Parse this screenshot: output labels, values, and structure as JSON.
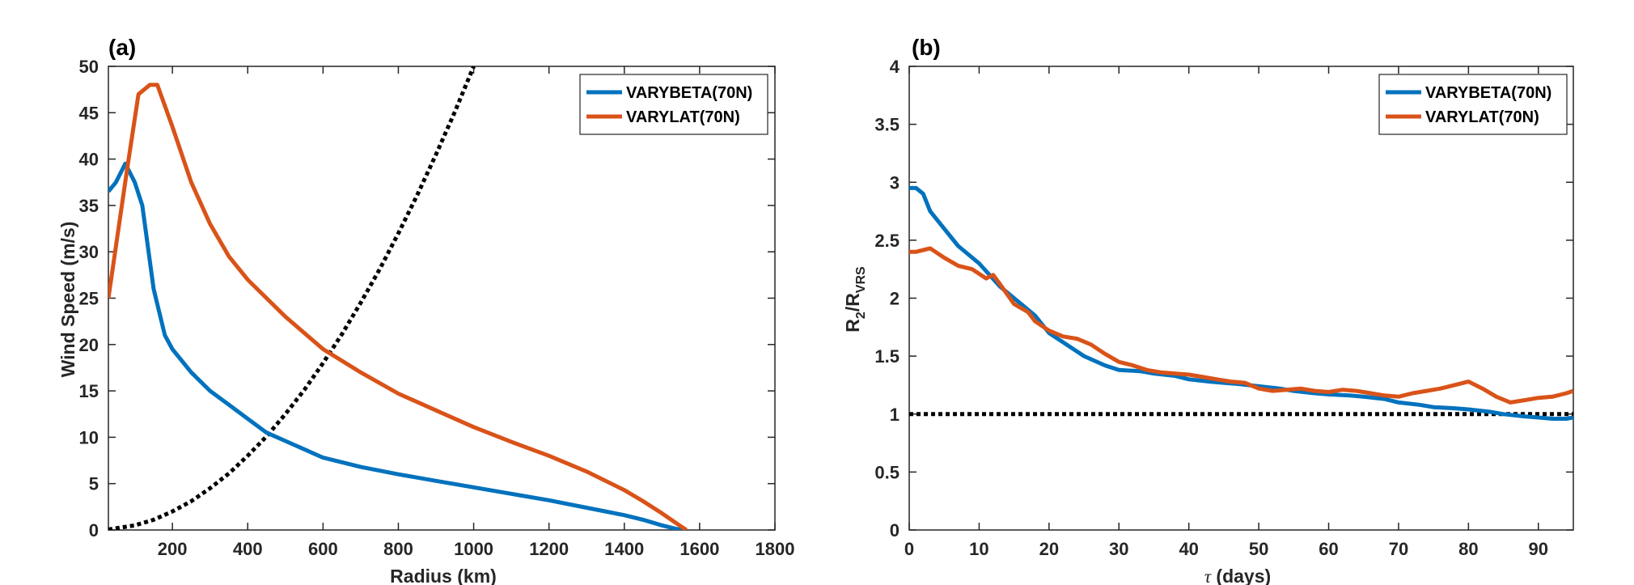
{
  "chart_data": [
    {
      "panel": "(a)",
      "type": "line",
      "xlabel": "Radius (km)",
      "ylabel": "Wind Speed (m/s)",
      "xlim": [
        30,
        1800
      ],
      "ylim": [
        0,
        50
      ],
      "xticks": [
        200,
        400,
        600,
        800,
        1000,
        1200,
        1400,
        1600,
        1800
      ],
      "yticks": [
        0,
        5,
        10,
        15,
        20,
        25,
        30,
        35,
        40,
        45,
        50
      ],
      "legend_position": "top-right",
      "series": [
        {
          "name": "VARYBETA(70N)",
          "color": "#0072BD",
          "style": "solid",
          "x": [
            30,
            50,
            75,
            100,
            120,
            150,
            180,
            200,
            250,
            300,
            350,
            400,
            450,
            500,
            600,
            700,
            800,
            900,
            1000,
            1100,
            1200,
            1300,
            1400,
            1450,
            1500,
            1540,
            1560
          ],
          "y": [
            36.5,
            37.5,
            39.5,
            37.5,
            35,
            26,
            21,
            19.5,
            17,
            15,
            13.5,
            12,
            10.5,
            9.6,
            7.8,
            6.8,
            6.0,
            5.3,
            4.6,
            3.9,
            3.2,
            2.4,
            1.6,
            1.1,
            0.5,
            0.1,
            0
          ]
        },
        {
          "name": "VARYLAT(70N)",
          "color": "#D95319",
          "style": "solid",
          "x": [
            30,
            80,
            110,
            140,
            160,
            200,
            250,
            300,
            350,
            400,
            450,
            500,
            600,
            700,
            800,
            900,
            1000,
            1100,
            1200,
            1300,
            1400,
            1450,
            1500,
            1550,
            1565
          ],
          "y": [
            25,
            39,
            47,
            48,
            48,
            43.5,
            37.5,
            33,
            29.5,
            27,
            25,
            23,
            19.5,
            17,
            14.7,
            12.9,
            11.1,
            9.5,
            8.0,
            6.3,
            4.3,
            3.1,
            1.8,
            0.4,
            0
          ]
        },
        {
          "name": "",
          "color": "#000000",
          "style": "dotted",
          "x": [
            30,
            100,
            150,
            200,
            250,
            300,
            350,
            400,
            450,
            500,
            550,
            600,
            650,
            700,
            750,
            800,
            850,
            900,
            950,
            1000
          ],
          "y": [
            0.05,
            0.5,
            1.1,
            2.0,
            3.1,
            4.5,
            6.1,
            8.0,
            10.1,
            12.5,
            15.1,
            18.0,
            21.1,
            24.5,
            28.1,
            32.0,
            36.1,
            40.5,
            45.1,
            50.0
          ]
        }
      ]
    },
    {
      "panel": "(b)",
      "type": "line",
      "xlabel_symbol": "τ",
      "xlabel": " (days)",
      "ylabel_main": "R",
      "ylabel_sub1": "2",
      "ylabel_mid": "/R",
      "ylabel_sub2": "VRS",
      "xlim": [
        0,
        95
      ],
      "ylim": [
        0,
        4
      ],
      "xticks": [
        0,
        10,
        20,
        30,
        40,
        50,
        60,
        70,
        80,
        90
      ],
      "yticks": [
        0,
        0.5,
        1,
        1.5,
        2,
        2.5,
        3,
        3.5,
        4
      ],
      "legend_position": "top-right",
      "series": [
        {
          "name": "VARYBETA(70N)",
          "color": "#0072BD",
          "style": "solid",
          "x": [
            0,
            1,
            2,
            3,
            5,
            7,
            10,
            13,
            15,
            18,
            20,
            23,
            25,
            28,
            30,
            33,
            35,
            38,
            40,
            43,
            45,
            47,
            50,
            53,
            55,
            58,
            60,
            63,
            65,
            68,
            70,
            73,
            75,
            78,
            80,
            83,
            85,
            88,
            90,
            92,
            94,
            95
          ],
          "y": [
            2.95,
            2.95,
            2.9,
            2.75,
            2.6,
            2.45,
            2.3,
            2.1,
            2.0,
            1.85,
            1.7,
            1.58,
            1.5,
            1.42,
            1.38,
            1.37,
            1.35,
            1.33,
            1.3,
            1.28,
            1.27,
            1.26,
            1.24,
            1.22,
            1.2,
            1.18,
            1.17,
            1.16,
            1.15,
            1.13,
            1.1,
            1.08,
            1.06,
            1.05,
            1.04,
            1.02,
            1.0,
            0.98,
            0.97,
            0.96,
            0.96,
            0.97
          ]
        },
        {
          "name": "VARYLAT(70N)",
          "color": "#D95319",
          "style": "solid",
          "x": [
            0,
            1,
            3,
            5,
            7,
            9,
            11,
            12,
            13,
            15,
            17,
            18,
            20,
            22,
            24,
            26,
            28,
            30,
            32,
            34,
            36,
            38,
            40,
            42,
            44,
            46,
            48,
            50,
            52,
            54,
            56,
            58,
            60,
            62,
            64,
            66,
            68,
            70,
            72,
            74,
            76,
            78,
            80,
            82,
            84,
            86,
            88,
            90,
            92,
            94,
            95
          ],
          "y": [
            2.4,
            2.4,
            2.43,
            2.35,
            2.28,
            2.25,
            2.17,
            2.2,
            2.12,
            1.95,
            1.88,
            1.8,
            1.72,
            1.67,
            1.65,
            1.6,
            1.52,
            1.45,
            1.42,
            1.38,
            1.36,
            1.35,
            1.34,
            1.32,
            1.3,
            1.28,
            1.27,
            1.22,
            1.2,
            1.21,
            1.22,
            1.2,
            1.19,
            1.21,
            1.2,
            1.18,
            1.16,
            1.15,
            1.18,
            1.2,
            1.22,
            1.25,
            1.28,
            1.22,
            1.15,
            1.1,
            1.12,
            1.14,
            1.15,
            1.18,
            1.2
          ]
        },
        {
          "name": "",
          "color": "#000000",
          "style": "dotted",
          "x": [
            0,
            95
          ],
          "y": [
            1,
            1
          ]
        }
      ]
    }
  ]
}
